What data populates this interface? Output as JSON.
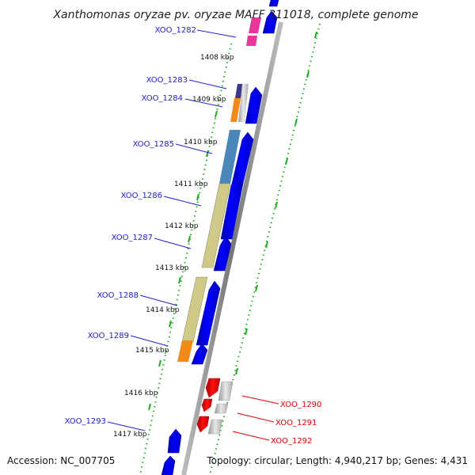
{
  "title": "Xanthomonas oryzae pv. oryzae MAFF 311018, complete genome",
  "accession_label": "Accession: NC_007705",
  "topology_label": "Topology: circular; Length: 4,940,217 bp; Genes: 4,431",
  "kbp_ticks": [
    "1408 kbp",
    "1409 kbp",
    "1410 kbp",
    "1411 kbp",
    "1412 kbp",
    "1413 kbp",
    "1414 kbp",
    "1415 kbp",
    "1416 kbp",
    "1417 kbp"
  ],
  "colors": {
    "label_plus": "#2020cc",
    "label_minus": "#dd0000",
    "plus_arrow": "#0000ee",
    "minus_arrow": "#ee0000",
    "backbone": "#888888",
    "dotted_track": "#22aa22"
  },
  "genes": [
    {
      "id": "XOO_1282",
      "strand": "plus",
      "block_color": "#e8369a"
    },
    {
      "id": "XOO_1283",
      "strand": "plus",
      "block_color": "#3b3a8a"
    },
    {
      "id": "XOO_1284",
      "strand": "plus",
      "block_color": "#f28a1a"
    },
    {
      "id": "XOO_1285",
      "strand": "plus",
      "block_color": "#4a87b8"
    },
    {
      "id": "XOO_1286",
      "strand": "plus",
      "block_color": "#cfc98a"
    },
    {
      "id": "XOO_1287",
      "strand": "plus",
      "block_color": "#cfc98a"
    },
    {
      "id": "XOO_1288",
      "strand": "plus",
      "block_color": "#cfc98a"
    },
    {
      "id": "XOO_1289",
      "strand": "plus",
      "block_color": "#f28a1a"
    },
    {
      "id": "XOO_1290",
      "strand": "minus",
      "block_color": "#bbbbbb"
    },
    {
      "id": "XOO_1291",
      "strand": "minus",
      "block_color": "#bbbbbb"
    },
    {
      "id": "XOO_1292",
      "strand": "minus",
      "block_color": "#bbbbbb"
    },
    {
      "id": "XOO_1293",
      "strand": "plus",
      "block_color": "#bbbbbb"
    }
  ]
}
